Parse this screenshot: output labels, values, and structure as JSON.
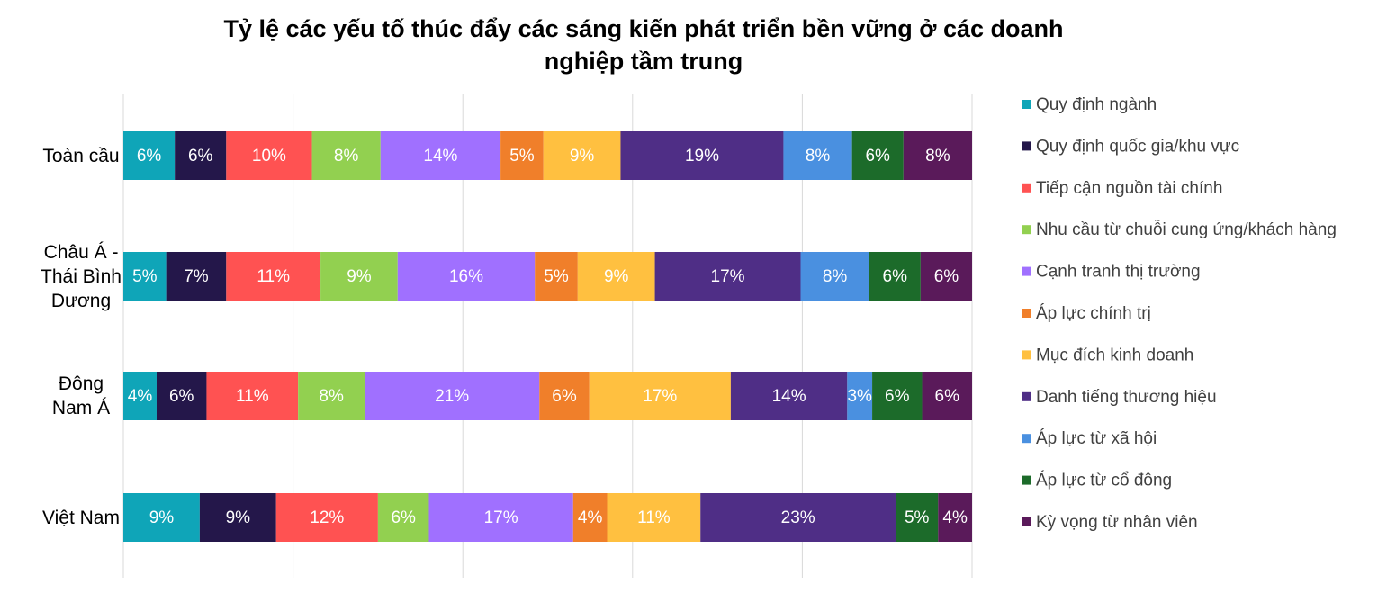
{
  "chart_data": {
    "type": "bar",
    "orientation": "horizontal",
    "stacked": "percent",
    "title": "Tỷ lệ các yếu tố thúc đẩy các sáng kiến phát triển bền vững ở các doanh nghiệp tầm trung",
    "categories": [
      "Toàn cầu",
      "Châu Á -Thái Bình Dương",
      "Đông Nam Á",
      "Việt Nam"
    ],
    "xlim": [
      0,
      100
    ],
    "xticks": [
      0,
      20,
      40,
      60,
      80,
      100
    ],
    "xtick_labels": false,
    "grid": true,
    "legend": "right",
    "series": [
      {
        "name": "Quy định ngành",
        "color": "#0fa5b8",
        "values": [
          6,
          5,
          4,
          9
        ],
        "value_labels": [
          "6%",
          "5%",
          "4%",
          "9%"
        ]
      },
      {
        "name": "Quy định quốc gia/khu vực",
        "color": "#24174a",
        "values": [
          6,
          7,
          6,
          9
        ],
        "value_labels": [
          "6%",
          "7%",
          "6%",
          "9%"
        ]
      },
      {
        "name": "Tiếp cận nguồn tài chính",
        "color": "#ff5252",
        "values": [
          10,
          11,
          11,
          12
        ],
        "value_labels": [
          "10%",
          "11%",
          "11%",
          "12%"
        ]
      },
      {
        "name": "Nhu cầu từ chuỗi cung ứng/khách hàng",
        "color": "#92d050",
        "values": [
          8,
          9,
          8,
          6
        ],
        "value_labels": [
          "8%",
          "9%",
          "8%",
          "6%"
        ]
      },
      {
        "name": "Cạnh tranh thị trường",
        "color": "#a070ff",
        "values": [
          14,
          16,
          21,
          17
        ],
        "value_labels": [
          "14%",
          "16%",
          "21%",
          "17%"
        ]
      },
      {
        "name": "Áp lực chính trị",
        "color": "#f07f2a",
        "values": [
          5,
          5,
          6,
          4
        ],
        "value_labels": [
          "5%",
          "5%",
          "6%",
          "4%"
        ]
      },
      {
        "name": "Mục đích kinh doanh",
        "color": "#ffc040",
        "values": [
          9,
          9,
          17,
          11
        ],
        "value_labels": [
          "9%",
          "9%",
          "17%",
          "11%"
        ]
      },
      {
        "name": "Danh tiếng thương hiệu",
        "color": "#4f2e86",
        "values": [
          19,
          17,
          14,
          23
        ],
        "value_labels": [
          "19%",
          "17%",
          "14%",
          "23%"
        ]
      },
      {
        "name": "Áp lực từ xã hội",
        "color": "#4a90e0",
        "values": [
          8,
          8,
          3,
          null
        ],
        "value_labels": [
          "8%",
          "8%",
          "3%",
          null
        ]
      },
      {
        "name": "Áp lực từ cổ đông",
        "color": "#1c6b2a",
        "values": [
          6,
          6,
          6,
          5
        ],
        "value_labels": [
          "6%",
          "6%",
          "6%",
          "5%"
        ]
      },
      {
        "name": "Kỳ vọng từ nhân viên",
        "color": "#5a1a5a",
        "values": [
          8,
          6,
          6,
          4
        ],
        "value_labels": [
          "8%",
          "6%",
          "6%",
          "4%"
        ]
      }
    ]
  }
}
